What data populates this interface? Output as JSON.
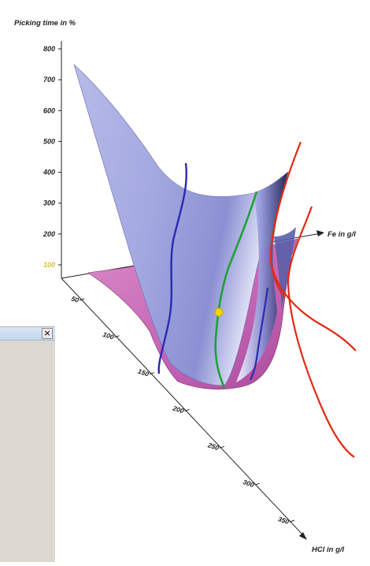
{
  "chart_data": {
    "type": "surface3d",
    "zlabel": "Picking time in %",
    "xlabel": "Fe in g/l",
    "ylabel": "HCl in g/l",
    "z_ticks": [
      {
        "label": "800",
        "highlight": false
      },
      {
        "label": "700",
        "highlight": false
      },
      {
        "label": "600",
        "highlight": false
      },
      {
        "label": "500",
        "highlight": false
      },
      {
        "label": "400",
        "highlight": false
      },
      {
        "label": "300",
        "highlight": false
      },
      {
        "label": "200",
        "highlight": false
      },
      {
        "label": "100",
        "highlight": true
      }
    ],
    "hcl_ticks": [
      "50",
      "100",
      "150",
      "200",
      "250",
      "300",
      "350"
    ],
    "optimum_marker": {
      "color": "#f2d400"
    },
    "colors": {
      "surface": "#9da3dc",
      "floor": "#c86ab8",
      "contour_blue": "#2a2ab0",
      "contour_green": "#1fa03a",
      "contour_red": "#e02a14",
      "highlight_tick": "#d4c230"
    }
  },
  "dialog": {
    "close_icon": "close-icon",
    "close_glyph": "×"
  }
}
